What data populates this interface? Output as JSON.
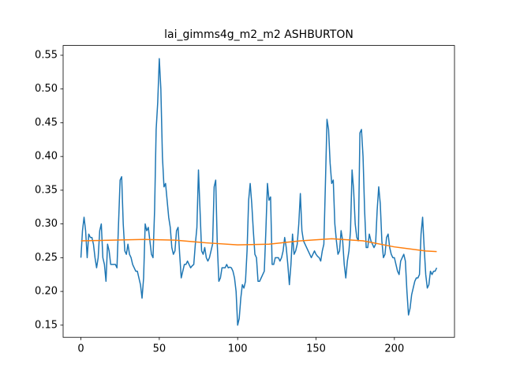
{
  "chart_data": {
    "type": "line",
    "title": "lai_gimms4g_m2_m2 ASHBURTON",
    "series": [
      {
        "color": "#1f77b4",
        "values": [
          0.25,
          0.29,
          0.31,
          0.29,
          0.25,
          0.285,
          0.28,
          0.28,
          0.27,
          0.25,
          0.235,
          0.25,
          0.29,
          0.3,
          0.25,
          0.24,
          0.215,
          0.27,
          0.26,
          0.24,
          0.24,
          0.24,
          0.24,
          0.235,
          0.3,
          0.365,
          0.37,
          0.3,
          0.26,
          0.255,
          0.27,
          0.255,
          0.25,
          0.24,
          0.235,
          0.23,
          0.23,
          0.22,
          0.21,
          0.19,
          0.22,
          0.3,
          0.29,
          0.295,
          0.275,
          0.255,
          0.25,
          0.32,
          0.44,
          0.48,
          0.545,
          0.5,
          0.4,
          0.355,
          0.36,
          0.335,
          0.31,
          0.295,
          0.265,
          0.255,
          0.26,
          0.29,
          0.295,
          0.255,
          0.22,
          0.23,
          0.24,
          0.24,
          0.245,
          0.24,
          0.235,
          0.238,
          0.24,
          0.27,
          0.295,
          0.38,
          0.32,
          0.26,
          0.255,
          0.265,
          0.25,
          0.245,
          0.25,
          0.26,
          0.27,
          0.355,
          0.365,
          0.27,
          0.215,
          0.22,
          0.235,
          0.235,
          0.235,
          0.24,
          0.235,
          0.236,
          0.235,
          0.23,
          0.22,
          0.2,
          0.15,
          0.16,
          0.19,
          0.21,
          0.205,
          0.215,
          0.26,
          0.335,
          0.36,
          0.33,
          0.29,
          0.255,
          0.25,
          0.215,
          0.215,
          0.22,
          0.225,
          0.23,
          0.29,
          0.36,
          0.335,
          0.34,
          0.24,
          0.24,
          0.25,
          0.25,
          0.25,
          0.245,
          0.25,
          0.26,
          0.28,
          0.265,
          0.24,
          0.21,
          0.24,
          0.285,
          0.255,
          0.26,
          0.27,
          0.3,
          0.345,
          0.29,
          0.275,
          0.27,
          0.265,
          0.26,
          0.255,
          0.25,
          0.255,
          0.26,
          0.255,
          0.252,
          0.25,
          0.245,
          0.26,
          0.27,
          0.36,
          0.455,
          0.44,
          0.39,
          0.36,
          0.365,
          0.3,
          0.275,
          0.255,
          0.26,
          0.29,
          0.275,
          0.24,
          0.22,
          0.245,
          0.26,
          0.29,
          0.38,
          0.35,
          0.3,
          0.28,
          0.275,
          0.435,
          0.44,
          0.4,
          0.32,
          0.265,
          0.265,
          0.285,
          0.275,
          0.27,
          0.265,
          0.27,
          0.32,
          0.355,
          0.33,
          0.275,
          0.25,
          0.255,
          0.28,
          0.285,
          0.265,
          0.255,
          0.25,
          0.25,
          0.24,
          0.23,
          0.225,
          0.245,
          0.25,
          0.255,
          0.245,
          0.2,
          0.165,
          0.175,
          0.195,
          0.205,
          0.215,
          0.22,
          0.22,
          0.225,
          0.285,
          0.31,
          0.265,
          0.225,
          0.205,
          0.21,
          0.23,
          0.225,
          0.23,
          0.23,
          0.235
        ]
      },
      {
        "color": "#ff7f0e",
        "x": [
          0,
          20,
          40,
          60,
          80,
          100,
          120,
          140,
          160,
          180,
          200,
          220,
          227
        ],
        "values": [
          0.275,
          0.276,
          0.277,
          0.276,
          0.272,
          0.269,
          0.27,
          0.275,
          0.278,
          0.275,
          0.266,
          0.26,
          0.259
        ]
      }
    ],
    "xlim": [
      -11.35,
      238.35
    ],
    "xticks": [
      0,
      50,
      100,
      150,
      200
    ],
    "ylim": [
      0.132,
      0.5645
    ],
    "yticks": [
      0.15,
      {
        "value": 0.2,
        "label": "0.20"
      },
      0.25,
      {
        "value": 0.3,
        "label": "0.30"
      },
      0.35,
      {
        "value": 0.4,
        "label": "0.40"
      },
      0.45,
      {
        "value": 0.5,
        "label": "0.50"
      },
      0.55
    ]
  }
}
